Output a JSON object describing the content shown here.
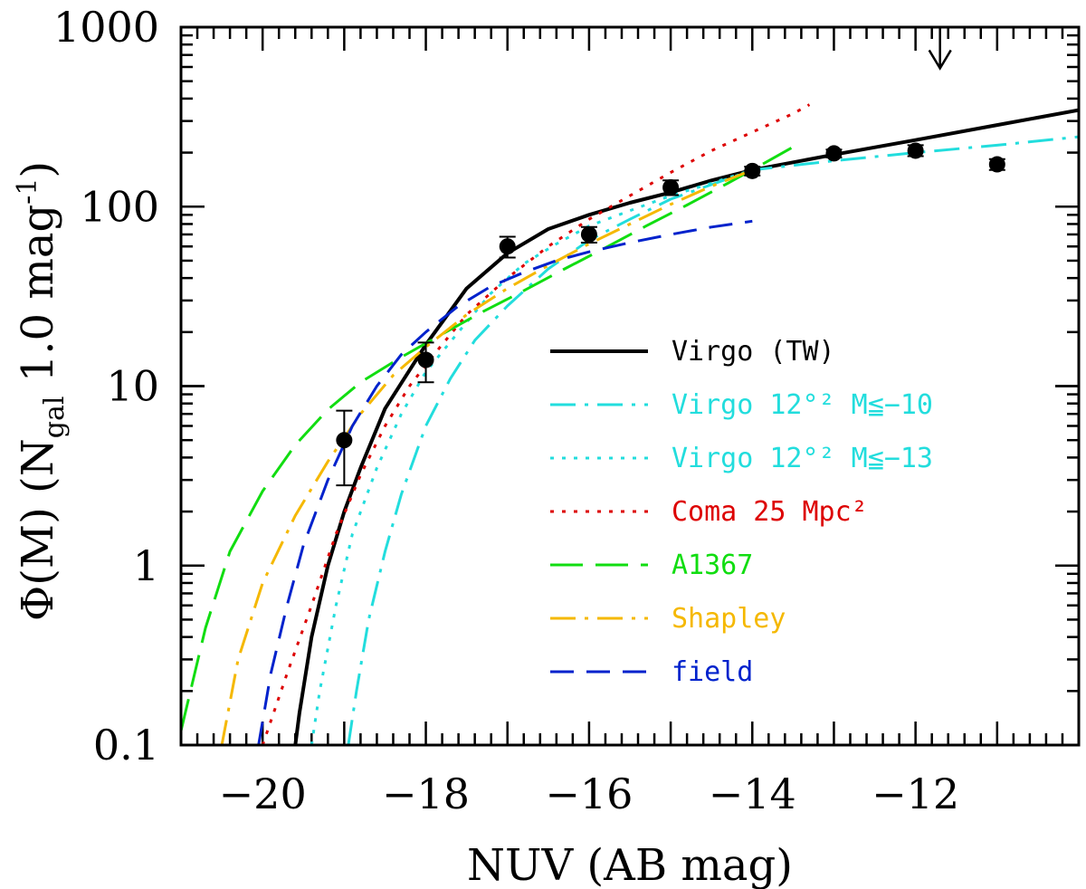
{
  "chart_data": {
    "type": "line",
    "title": "",
    "xlabel": "NUV (AB mag)",
    "ylabel_main": "Φ(M)  (N",
    "ylabel_sub": "gal",
    "ylabel_rest": " 1.0 mag",
    "ylabel_sup": "-1",
    "ylabel_close": ")",
    "xlim": [
      -21.0,
      -10.0
    ],
    "ylim": [
      0.1,
      1000
    ],
    "yscale": "log",
    "x_ticks": [
      -20,
      -18,
      -16,
      -14,
      -12
    ],
    "x_tick_labels": [
      "−20",
      "−18",
      "−16",
      "−14",
      "−12"
    ],
    "y_ticks": [
      0.1,
      1,
      10,
      100,
      1000
    ],
    "y_tick_labels": [
      "0.1",
      "1",
      "10",
      "100",
      "1000"
    ],
    "legend_position": "center-right",
    "series": [
      {
        "name": "Virgo (TW)",
        "color": "#000000",
        "dash": "solid",
        "width": 4,
        "x": [
          -19.6,
          -19.55,
          -19.4,
          -19.2,
          -19.0,
          -18.8,
          -18.5,
          -18.0,
          -17.5,
          -17.0,
          -16.5,
          -16.0,
          -15.5,
          -15.0,
          -14.5,
          -14.0,
          -13.0,
          -12.0,
          -11.0,
          -10.0
        ],
        "y": [
          0.1,
          0.15,
          0.4,
          1.0,
          2.0,
          3.5,
          7.5,
          17,
          35,
          55,
          75,
          90,
          105,
          120,
          140,
          160,
          195,
          235,
          285,
          345
        ]
      },
      {
        "name": "Virgo 12°² M≦−10",
        "color": "#22dddd",
        "dash": "dashdot",
        "width": 3,
        "x": [
          -18.95,
          -18.85,
          -18.7,
          -18.5,
          -18.3,
          -18.0,
          -17.7,
          -17.4,
          -17.0,
          -16.5,
          -16.0,
          -15.5,
          -15.0,
          -14.0,
          -13.0,
          -12.0,
          -11.0,
          -10.0
        ],
        "y": [
          0.1,
          0.2,
          0.5,
          1.2,
          2.5,
          6.0,
          11,
          18,
          28,
          45,
          65,
          85,
          110,
          160,
          180,
          200,
          220,
          245
        ]
      },
      {
        "name": "Virgo 12°² M≦−13",
        "color": "#22dddd",
        "dash": "dotted",
        "width": 3,
        "x": [
          -19.4,
          -19.3,
          -19.1,
          -18.9,
          -18.6,
          -18.3,
          -18.0,
          -17.6,
          -17.2,
          -16.8,
          -16.4,
          -16.0,
          -15.5,
          -15.0,
          -14.5,
          -14.0
        ],
        "y": [
          0.1,
          0.2,
          0.6,
          1.5,
          3.5,
          7.0,
          12,
          20,
          33,
          48,
          62,
          78,
          95,
          115,
          135,
          160
        ]
      },
      {
        "name": "Coma 25 Mpc²",
        "color": "#dd0000",
        "dash": "dotted",
        "width": 3,
        "x": [
          -20.0,
          -19.7,
          -19.4,
          -19.1,
          -18.8,
          -18.5,
          -18.2,
          -17.9,
          -17.5,
          -17.0,
          -16.5,
          -16.0,
          -15.5,
          -15.0,
          -14.5,
          -14.0,
          -13.5,
          -13.3
        ],
        "y": [
          0.1,
          0.25,
          0.6,
          1.5,
          3.2,
          6.0,
          10,
          15,
          25,
          40,
          60,
          85,
          115,
          155,
          205,
          260,
          330,
          370
        ]
      },
      {
        "name": "A1367",
        "color": "#11dd11",
        "dash": "longdash",
        "width": 3,
        "x": [
          -21.0,
          -20.7,
          -20.4,
          -20.0,
          -19.6,
          -19.2,
          -18.8,
          -18.3,
          -17.8,
          -17.3,
          -16.8,
          -16.3,
          -15.8,
          -15.3,
          -14.8,
          -14.3,
          -13.8,
          -13.5
        ],
        "y": [
          0.12,
          0.45,
          1.2,
          2.6,
          4.7,
          7.4,
          10.5,
          14.5,
          19.5,
          26,
          34,
          45,
          59,
          78,
          102,
          135,
          180,
          215
        ]
      },
      {
        "name": "Shapley",
        "color": "#f5b800",
        "dash": "dashdot",
        "width": 3,
        "x": [
          -20.5,
          -20.3,
          -20.0,
          -19.6,
          -19.2,
          -18.8,
          -18.4,
          -18.0,
          -17.5,
          -17.0,
          -16.5,
          -16.0,
          -15.5,
          -15.0,
          -14.5,
          -14.0
        ],
        "y": [
          0.1,
          0.3,
          0.8,
          1.9,
          3.8,
          7.0,
          11.5,
          16.5,
          25,
          35,
          47,
          62,
          80,
          103,
          130,
          160
        ]
      },
      {
        "name": "field",
        "color": "#0022cc",
        "dash": "dashed",
        "width": 3,
        "x": [
          -20.05,
          -19.9,
          -19.7,
          -19.5,
          -19.2,
          -18.9,
          -18.6,
          -18.3,
          -18.0,
          -17.6,
          -17.2,
          -16.8,
          -16.4,
          -16.0,
          -15.5,
          -15.0,
          -14.5,
          -14.0
        ],
        "y": [
          0.1,
          0.25,
          0.6,
          1.3,
          3.0,
          6.0,
          10,
          15,
          20,
          28,
          36,
          43,
          50,
          56,
          63,
          70,
          77,
          83
        ]
      }
    ],
    "points": {
      "name": "Virgo (TW) data",
      "color": "#000000",
      "x": [
        -19.0,
        -18.0,
        -17.0,
        -16.0,
        -15.0,
        -14.0,
        -13.0,
        -12.0,
        -11.0
      ],
      "y": [
        5.0,
        14.0,
        60.0,
        70.0,
        128.0,
        158.0,
        198.0,
        205.0,
        172.0
      ],
      "err_lo": [
        2.8,
        10.5,
        52.0,
        63.0,
        116.0,
        149.0,
        188.0,
        191.0,
        160.0
      ],
      "err_hi": [
        7.3,
        17.5,
        68.0,
        77.0,
        140.0,
        167.0,
        208.0,
        220.0,
        184.0
      ]
    },
    "annotation": {
      "type": "upper-limit-arrow",
      "x": -11.7,
      "y_from": 1000,
      "y_to": 590
    }
  }
}
